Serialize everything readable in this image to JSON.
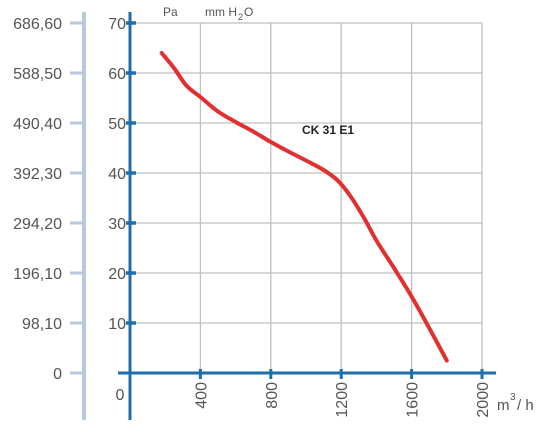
{
  "chart_data": {
    "type": "line",
    "unit_labels": {
      "pa": "Pa",
      "mm": "mm H",
      "sub": "2",
      "o": "O"
    },
    "xlabel": {
      "base": "m",
      "sup": "3",
      "rest": "/ h"
    },
    "pa_ticks": [
      "0",
      "98,10",
      "196,10",
      "294,20",
      "392,30",
      "490,40",
      "588,50",
      "686,60"
    ],
    "mm_ticks": [
      "10",
      "20",
      "30",
      "40",
      "50",
      "60",
      "70"
    ],
    "x_ticks": [
      "0",
      "400",
      "800",
      "1200",
      "1600",
      "2000"
    ],
    "xlim": [
      0,
      2000
    ],
    "ylim": [
      0,
      70
    ],
    "grid": true,
    "series": [
      {
        "name": "CK 31 E1",
        "color": "#e03030",
        "points": [
          [
            180,
            64
          ],
          [
            250,
            61
          ],
          [
            320,
            57.5
          ],
          [
            400,
            55.2
          ],
          [
            500,
            52.3
          ],
          [
            600,
            50.2
          ],
          [
            700,
            48.3
          ],
          [
            800,
            46.2
          ],
          [
            900,
            44.3
          ],
          [
            1000,
            42.5
          ],
          [
            1100,
            40.6
          ],
          [
            1180,
            38.5
          ],
          [
            1250,
            35.5
          ],
          [
            1330,
            31
          ],
          [
            1400,
            26.5
          ],
          [
            1500,
            21
          ],
          [
            1600,
            15.3
          ],
          [
            1700,
            9
          ],
          [
            1800,
            2.5
          ]
        ]
      }
    ],
    "colors": {
      "axis": "#1f6ea8",
      "grid": "#bfbfbf",
      "pa_axis": "#b9c9dd",
      "text": "#555555"
    }
  }
}
